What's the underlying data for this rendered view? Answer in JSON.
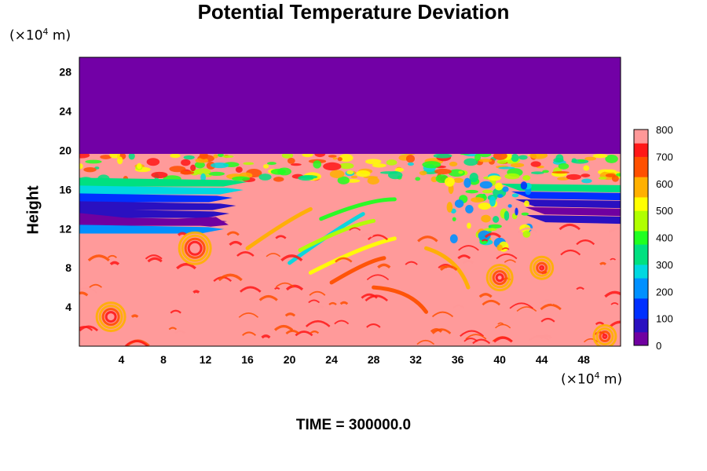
{
  "chart_data": {
    "type": "heatmap",
    "title": "Potential Temperature Deviation",
    "ylabel": "Height",
    "xlabel": "",
    "x_unit_label": "(×10",
    "x_unit_exp": "4",
    "x_unit_tail": " m)",
    "y_unit_label": "(×10",
    "y_unit_exp": "4",
    "y_unit_tail": " m)",
    "footer": "TIME = 300000.0",
    "xlim": [
      0,
      51.5
    ],
    "ylim": [
      0,
      29.5
    ],
    "x_ticks": [
      4,
      8,
      12,
      16,
      20,
      24,
      28,
      32,
      36,
      40,
      44,
      48
    ],
    "y_ticks": [
      4,
      8,
      12,
      16,
      20,
      24,
      28
    ],
    "colorbar": {
      "range": [
        0,
        800
      ],
      "ticks": [
        0,
        100,
        200,
        300,
        400,
        500,
        600,
        700,
        800
      ]
    },
    "field_description": {
      "upper_layer_top": 29.5,
      "upper_layer_bottom": 19.8,
      "upper_layer_value": 0,
      "background_value": 800
    }
  },
  "colors": {
    "stops": [
      "#7000a0",
      "#2a10c0",
      "#0030ff",
      "#0090ff",
      "#00d8e0",
      "#00e080",
      "#20ff20",
      "#b0ff00",
      "#ffff00",
      "#ffb000",
      "#ff5000",
      "#ff1818",
      "#ff9898"
    ],
    "upper_layer": "#7200a6",
    "background": "#ff9a9a"
  }
}
